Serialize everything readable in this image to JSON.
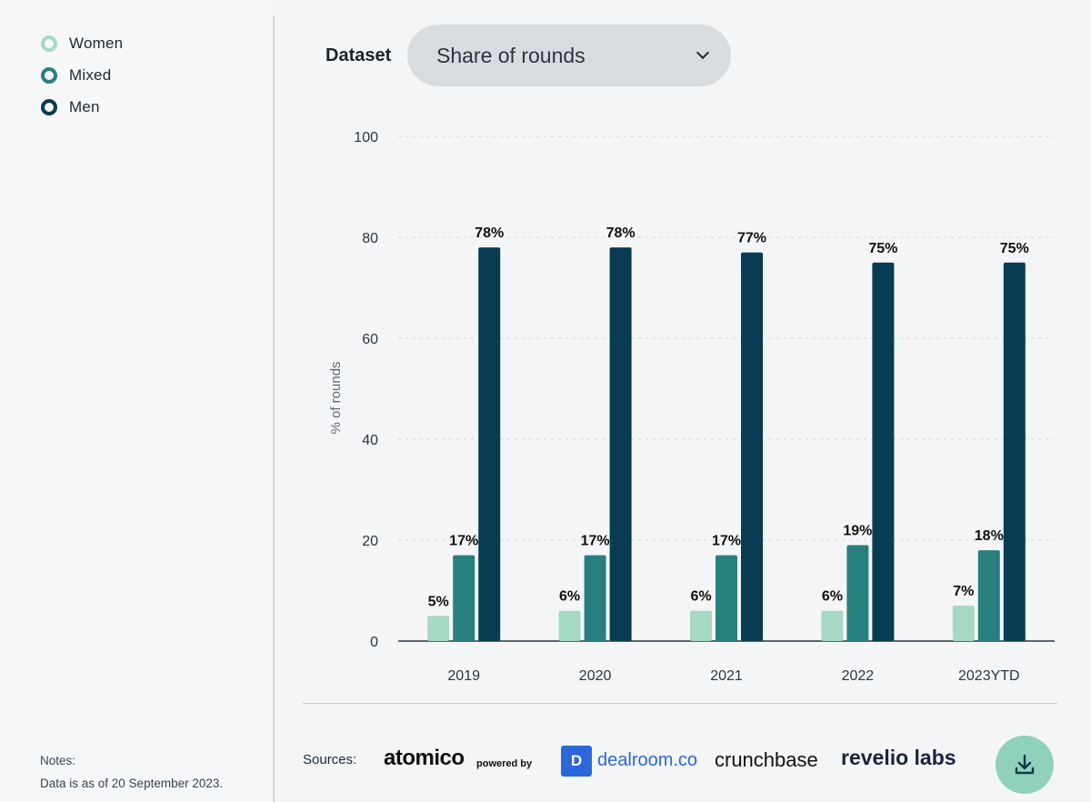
{
  "legend": [
    {
      "label": "Women",
      "color": "#a6d9c4"
    },
    {
      "label": "Mixed",
      "color": "#27807f"
    },
    {
      "label": "Men",
      "color": "#073c52"
    }
  ],
  "notes": {
    "heading": "Notes:",
    "text": "Data is as of 20 September 2023."
  },
  "dataset": {
    "label": "Dataset",
    "selected": "Share of rounds",
    "icon": "chevron-down-icon"
  },
  "sources": {
    "label": "Sources:",
    "atomico": "atomico",
    "powered_by": "powered by",
    "dealroom_icon": "D",
    "dealroom": "dealroom.co",
    "crunchbase": "crunchbase",
    "revelio": "revelio labs"
  },
  "download": {
    "icon": "download-icon"
  },
  "chart_data": {
    "type": "bar",
    "ylabel": "% of rounds",
    "ylim": [
      0,
      100
    ],
    "yticks": [
      0,
      20,
      40,
      60,
      80,
      100
    ],
    "grid": true,
    "categories": [
      "2019",
      "2020",
      "2021",
      "2022",
      "2023YTD"
    ],
    "series": [
      {
        "name": "Women",
        "color": "#a6d9c4",
        "values": [
          5,
          6,
          6,
          6,
          7
        ],
        "labels": [
          "5%",
          "6%",
          "6%",
          "6%",
          "7%"
        ]
      },
      {
        "name": "Mixed",
        "color": "#27807f",
        "values": [
          17,
          17,
          17,
          19,
          18
        ],
        "labels": [
          "17%",
          "17%",
          "17%",
          "19%",
          "18%"
        ]
      },
      {
        "name": "Men",
        "color": "#073c52",
        "values": [
          78,
          78,
          77,
          75,
          75
        ],
        "labels": [
          "78%",
          "78%",
          "77%",
          "75%",
          "75%"
        ]
      }
    ]
  }
}
